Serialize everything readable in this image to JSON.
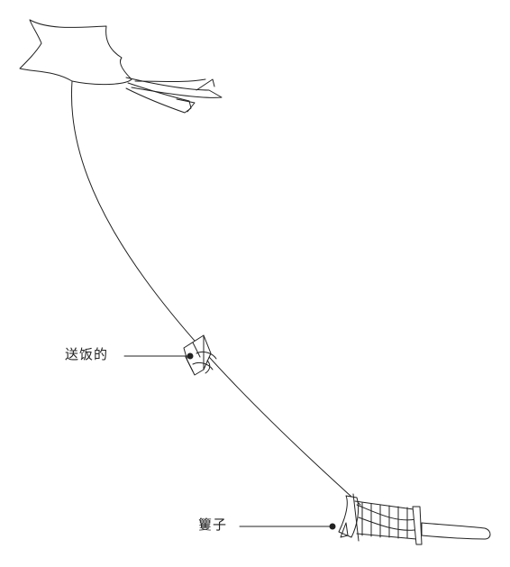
{
  "labels": {
    "messenger": "送饭的",
    "reel": "籰子"
  },
  "colors": {
    "ink": "#222222",
    "background": "#ffffff"
  }
}
